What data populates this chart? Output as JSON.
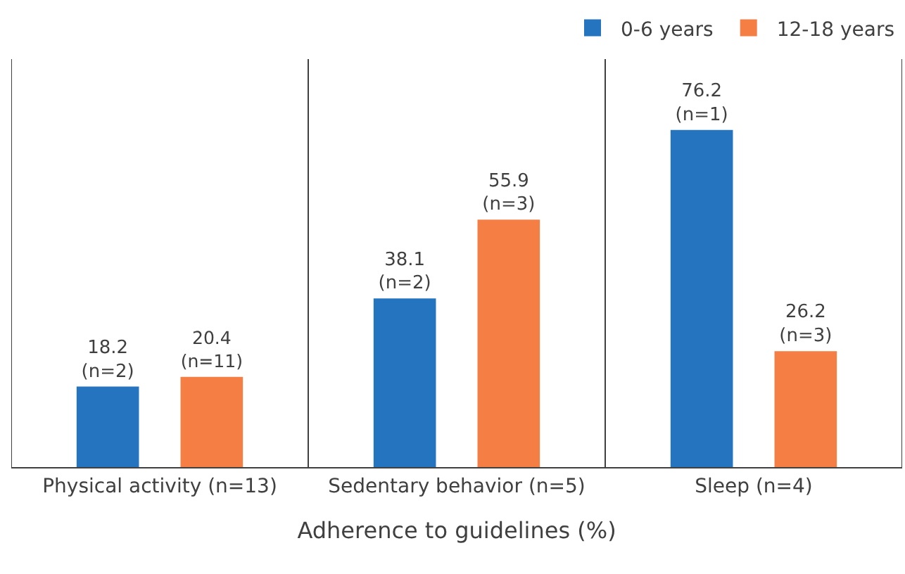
{
  "chart_data": {
    "type": "bar",
    "xlabel": "Adherence to guidelines (%)",
    "categories": [
      "Physical activity (n=13)",
      "Sedentary behavior (n=5)",
      "Sleep (n=4)"
    ],
    "series": [
      {
        "name": "0-6 years",
        "color": "#2474c0",
        "values": [
          18.2,
          38.1,
          76.2
        ],
        "value_labels": [
          "18.2\n(n=2)",
          "38.1\n(n=2)",
          "76.2\n(n=1)"
        ]
      },
      {
        "name": "12-18 years",
        "color": "#f47e44",
        "values": [
          20.4,
          55.9,
          26.2
        ],
        "value_labels": [
          "20.4\n(n=11)",
          "55.9\n(n=3)",
          "26.2\n(n=3)"
        ]
      }
    ],
    "legend": "top right"
  }
}
